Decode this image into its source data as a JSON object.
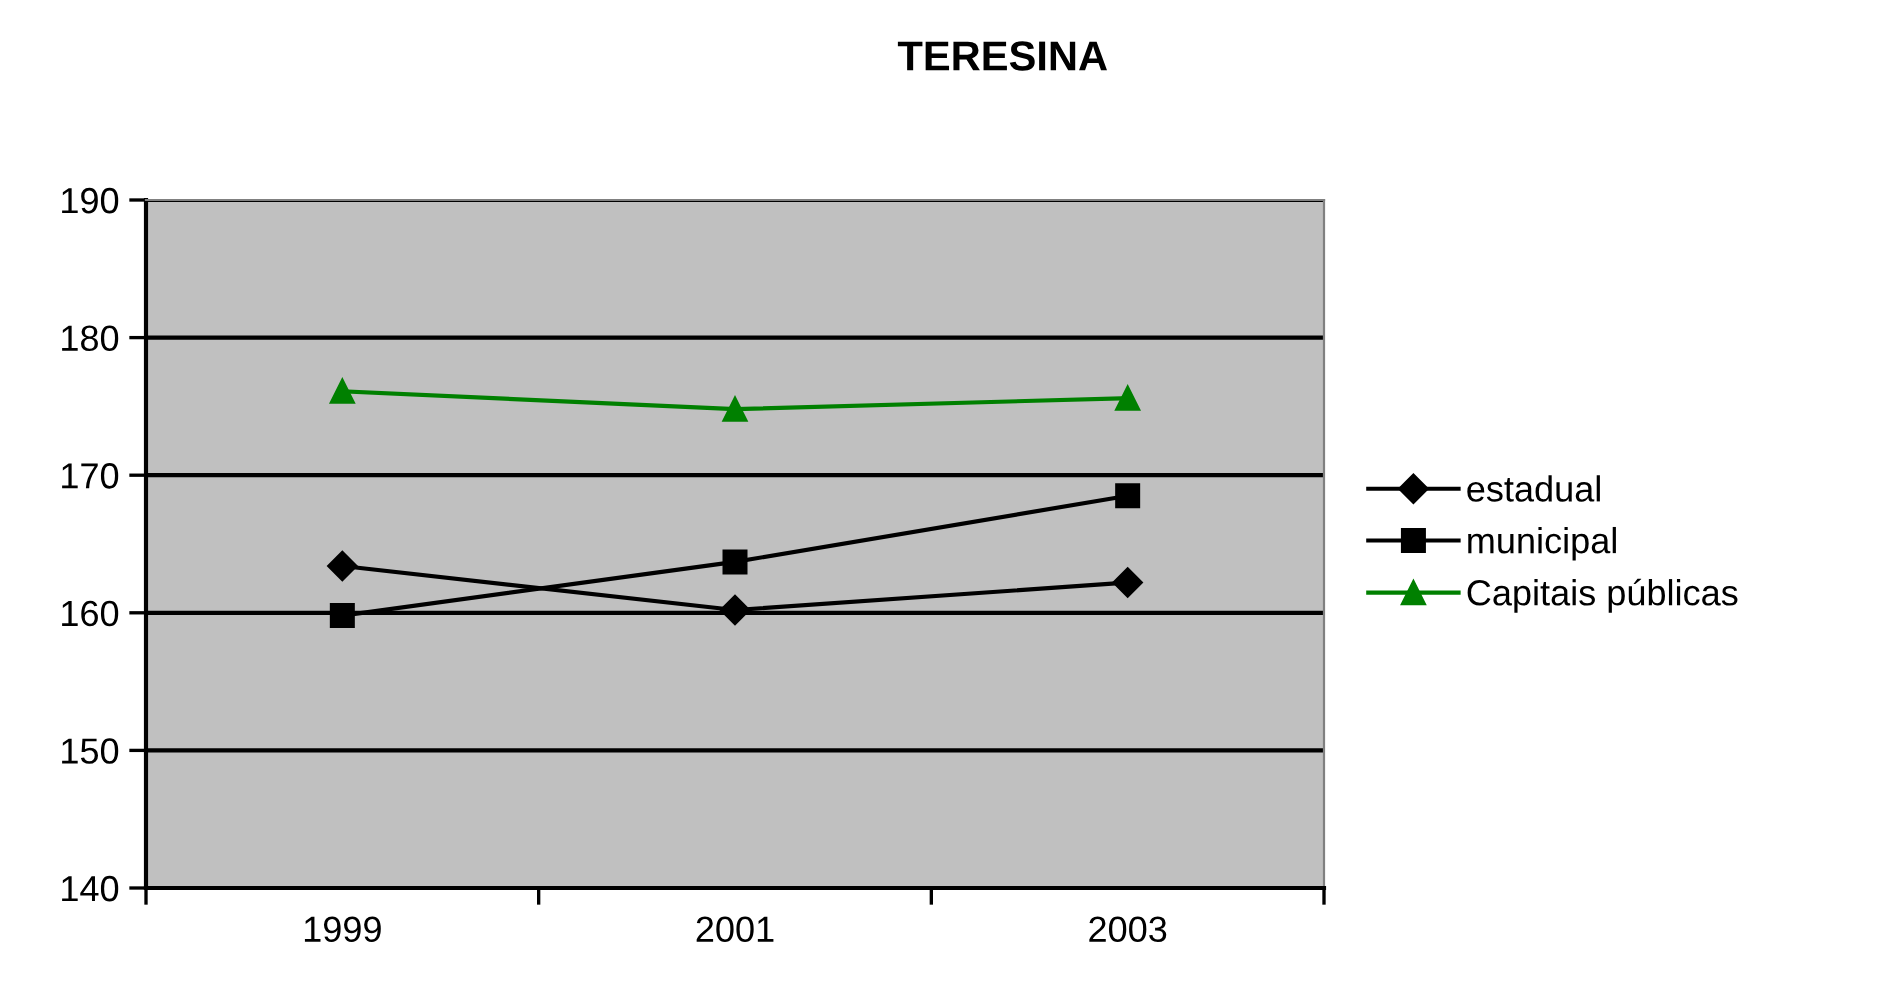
{
  "chart_data": {
    "type": "line",
    "title": "TERESINA",
    "categories": [
      "1999",
      "2001",
      "2003"
    ],
    "series": [
      {
        "name": "estadual",
        "color": "#000000",
        "marker": "diamond",
        "values": [
          163.4,
          160.2,
          162.2
        ]
      },
      {
        "name": "municipal",
        "color": "#000000",
        "marker": "square",
        "values": [
          159.8,
          163.7,
          168.5
        ]
      },
      {
        "name": "Capitais públicas",
        "color": "#008000",
        "marker": "triangle",
        "values": [
          176.1,
          174.8,
          175.6
        ]
      }
    ],
    "ylim": [
      140,
      190
    ],
    "yticks": [
      140,
      150,
      160,
      170,
      180,
      190
    ],
    "grid": "y",
    "legend": "right"
  }
}
